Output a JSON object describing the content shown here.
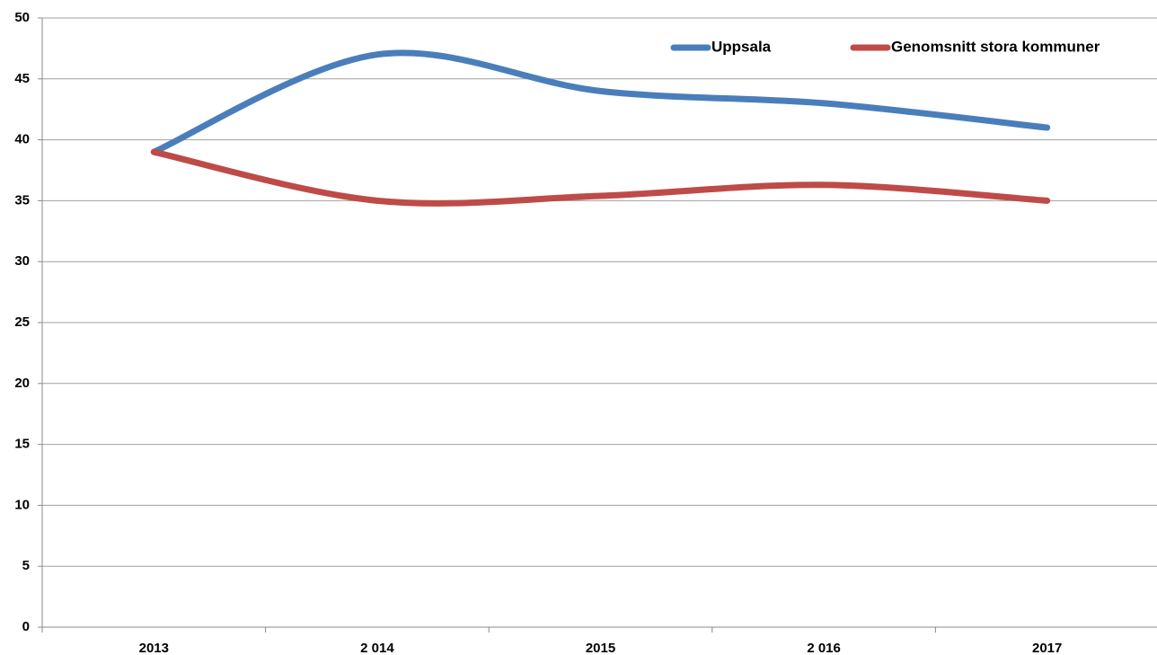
{
  "chart_data": {
    "type": "line",
    "categories": [
      "2013",
      "2 014",
      "2015",
      "2 016",
      "2017"
    ],
    "series": [
      {
        "name": "Uppsala",
        "color": "#4a7ebb",
        "values": [
          39,
          47,
          44,
          43,
          41
        ]
      },
      {
        "name": "Genomsnitt stora kommuner",
        "color": "#be4b48",
        "values": [
          39,
          35,
          35.4,
          36.3,
          35
        ]
      }
    ],
    "ylim": [
      0,
      50
    ],
    "yticks": [
      0,
      5,
      10,
      15,
      20,
      25,
      30,
      35,
      40,
      45,
      50
    ],
    "grid": true,
    "smooth": true,
    "legend": "upper right"
  }
}
